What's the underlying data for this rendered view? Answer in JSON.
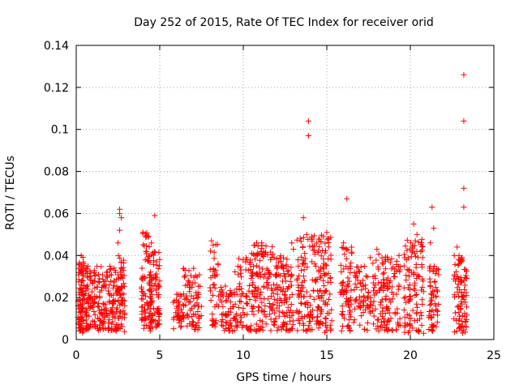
{
  "chart_data": {
    "type": "scatter",
    "title": "Day 252 of 2015, Rate Of TEC Index for receiver orid",
    "xlabel": "GPS time / hours",
    "ylabel": "ROTI / TECUs",
    "xlim": [
      0,
      25
    ],
    "ylim": [
      0,
      0.14
    ],
    "xticks": [
      "0",
      "5",
      "10",
      "15",
      "20",
      "25"
    ],
    "xtick_values": [
      0,
      5,
      10,
      15,
      20,
      25
    ],
    "yticks": [
      "0",
      "0.02",
      "0.04",
      "0.06",
      "0.08",
      "0.1",
      "0.12",
      "0.14"
    ],
    "ytick_values": [
      0,
      0.02,
      0.04,
      0.06,
      0.08,
      0.1,
      0.12,
      0.14
    ],
    "grid": true,
    "marker": "+",
    "color": "#ff0000",
    "series": [
      {
        "name": "ROTI",
        "clusters": [
          {
            "x_range": [
              0.1,
              0.5
            ],
            "y_range": [
              0.003,
              0.04
            ],
            "count": 90
          },
          {
            "x_range": [
              0.5,
              1.5
            ],
            "y_range": [
              0.004,
              0.035
            ],
            "count": 110
          },
          {
            "x_range": [
              1.5,
              2.5
            ],
            "y_range": [
              0.004,
              0.035
            ],
            "count": 110
          },
          {
            "x_range": [
              2.5,
              2.9
            ],
            "y_range": [
              0.003,
              0.04
            ],
            "count": 60
          },
          {
            "x_range": [
              3.9,
              4.4
            ],
            "y_range": [
              0.005,
              0.051
            ],
            "count": 70
          },
          {
            "x_range": [
              4.4,
              5.0
            ],
            "y_range": [
              0.004,
              0.042
            ],
            "count": 90
          },
          {
            "x_range": [
              5.8,
              6.4
            ],
            "y_range": [
              0.005,
              0.022
            ],
            "count": 40
          },
          {
            "x_range": [
              6.4,
              7.5
            ],
            "y_range": [
              0.004,
              0.034
            ],
            "count": 80
          },
          {
            "x_range": [
              8.0,
              8.5
            ],
            "y_range": [
              0.005,
              0.047
            ],
            "count": 40
          },
          {
            "x_range": [
              8.5,
              9.5
            ],
            "y_range": [
              0.004,
              0.026
            ],
            "count": 60
          },
          {
            "x_range": [
              9.5,
              10.6
            ],
            "y_range": [
              0.004,
              0.04
            ],
            "count": 80
          },
          {
            "x_range": [
              10.6,
              11.8
            ],
            "y_range": [
              0.004,
              0.045
            ],
            "count": 110
          },
          {
            "x_range": [
              11.8,
              13.0
            ],
            "y_range": [
              0.004,
              0.04
            ],
            "count": 110
          },
          {
            "x_range": [
              13.2,
              14.3
            ],
            "y_range": [
              0.004,
              0.05
            ],
            "count": 100
          },
          {
            "x_range": [
              14.3,
              15.3
            ],
            "y_range": [
              0.003,
              0.05
            ],
            "count": 100
          },
          {
            "x_range": [
              15.8,
              16.5
            ],
            "y_range": [
              0.003,
              0.046
            ],
            "count": 70
          },
          {
            "x_range": [
              16.6,
              17.5
            ],
            "y_range": [
              0.004,
              0.035
            ],
            "count": 60
          },
          {
            "x_range": [
              17.5,
              18.4
            ],
            "y_range": [
              0.004,
              0.042
            ],
            "count": 60
          },
          {
            "x_range": [
              18.4,
              19.4
            ],
            "y_range": [
              0.004,
              0.04
            ],
            "count": 80
          },
          {
            "x_range": [
              19.6,
              20.8
            ],
            "y_range": [
              0.003,
              0.048
            ],
            "count": 110
          },
          {
            "x_range": [
              21.1,
              21.7
            ],
            "y_range": [
              0.004,
              0.035
            ],
            "count": 60
          },
          {
            "x_range": [
              22.6,
              23.4
            ],
            "y_range": [
              0.003,
              0.04
            ],
            "count": 90
          }
        ],
        "points": [
          [
            0.3,
            0.04
          ],
          [
            2.6,
            0.062
          ],
          [
            2.6,
            0.06
          ],
          [
            2.7,
            0.058
          ],
          [
            2.6,
            0.052
          ],
          [
            2.5,
            0.046
          ],
          [
            4.0,
            0.051
          ],
          [
            4.2,
            0.049
          ],
          [
            4.7,
            0.059
          ],
          [
            4.5,
            0.046
          ],
          [
            8.1,
            0.047
          ],
          [
            8.2,
            0.045
          ],
          [
            10.8,
            0.046
          ],
          [
            11.1,
            0.046
          ],
          [
            11.3,
            0.041
          ],
          [
            10.5,
            0.041
          ],
          [
            12.9,
            0.046
          ],
          [
            13.0,
            0.043
          ],
          [
            13.6,
            0.058
          ],
          [
            13.8,
            0.05
          ],
          [
            13.9,
            0.104
          ],
          [
            13.9,
            0.097
          ],
          [
            14.1,
            0.049
          ],
          [
            15.0,
            0.051
          ],
          [
            15.1,
            0.048
          ],
          [
            16.2,
            0.067
          ],
          [
            16.0,
            0.046
          ],
          [
            17.6,
            0.039
          ],
          [
            18.0,
            0.043
          ],
          [
            20.2,
            0.055
          ],
          [
            20.4,
            0.05
          ],
          [
            20.3,
            0.047
          ],
          [
            21.3,
            0.063
          ],
          [
            21.4,
            0.053
          ],
          [
            21.2,
            0.046
          ],
          [
            22.8,
            0.044
          ],
          [
            23.2,
            0.126
          ],
          [
            23.2,
            0.104
          ],
          [
            23.2,
            0.072
          ],
          [
            23.2,
            0.063
          ],
          [
            23.1,
            0.039
          ]
        ]
      }
    ]
  }
}
